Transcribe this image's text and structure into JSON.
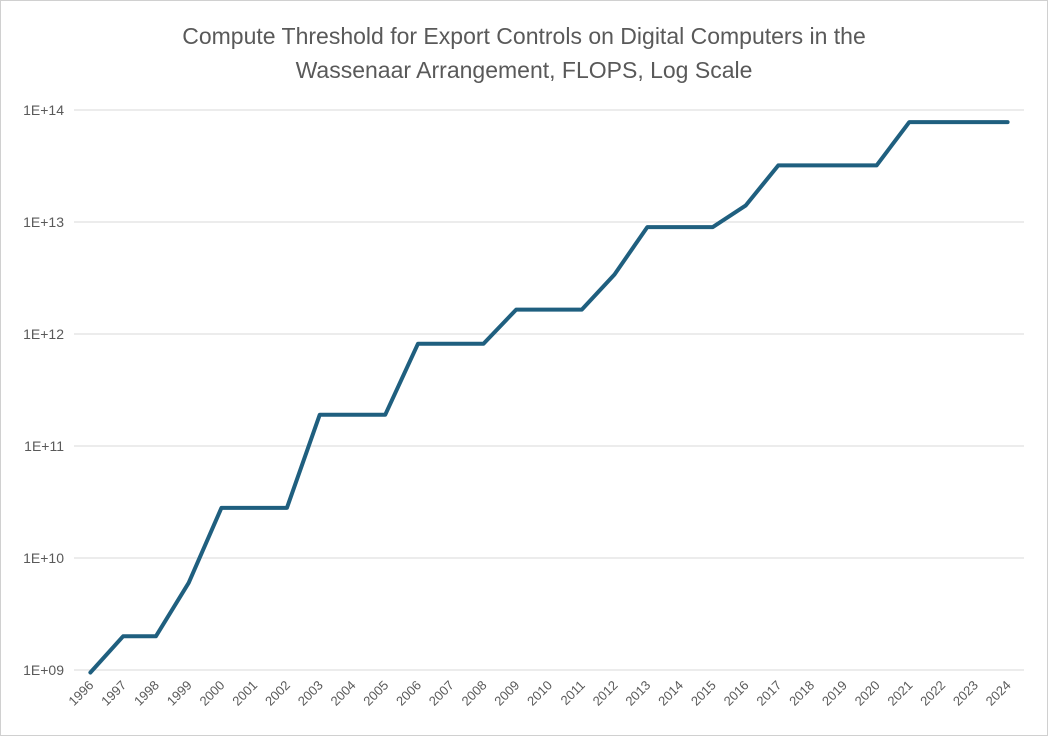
{
  "chart_data": {
    "type": "line",
    "title_line1": "Compute Threshold for Export Controls on Digital Computers in the",
    "title_line2": "Wassenaar Arrangement, FLOPS, Log Scale",
    "y_scale": "log",
    "y_ticks": [
      {
        "value": 1000000000.0,
        "label": "1E+09"
      },
      {
        "value": 10000000000.0,
        "label": "1E+10"
      },
      {
        "value": 100000000000.0,
        "label": "1E+11"
      },
      {
        "value": 1000000000000.0,
        "label": "1E+12"
      },
      {
        "value": 10000000000000.0,
        "label": "1E+13"
      },
      {
        "value": 100000000000000.0,
        "label": "1E+14"
      }
    ],
    "ylim": [
      1000000000.0,
      100000000000000.0
    ],
    "grid": true,
    "legend": "none",
    "line_color": "#1f5f7f",
    "categories": [
      "1996",
      "1997",
      "1998",
      "1999",
      "2000",
      "2001",
      "2002",
      "2003",
      "2004",
      "2005",
      "2006",
      "2007",
      "2008",
      "2009",
      "2010",
      "2011",
      "2012",
      "2013",
      "2014",
      "2015",
      "2016",
      "2017",
      "2018",
      "2019",
      "2020",
      "2021",
      "2022",
      "2023",
      "2024"
    ],
    "series": [
      {
        "values": [
          950000000.0,
          2000000000.0,
          2000000000.0,
          6000000000.0,
          28000000000.0,
          28000000000.0,
          28000000000.0,
          190000000000.0,
          190000000000.0,
          190000000000.0,
          820000000000.0,
          820000000000.0,
          820000000000.0,
          1650000000000.0,
          1650000000000.0,
          1650000000000.0,
          3400000000000.0,
          9000000000000.0,
          9000000000000.0,
          9000000000000.0,
          14000000000000.0,
          32000000000000.0,
          32000000000000.0,
          32000000000000.0,
          32000000000000.0,
          78000000000000.0,
          78000000000000.0,
          78000000000000.0,
          78000000000000.0
        ]
      }
    ]
  }
}
